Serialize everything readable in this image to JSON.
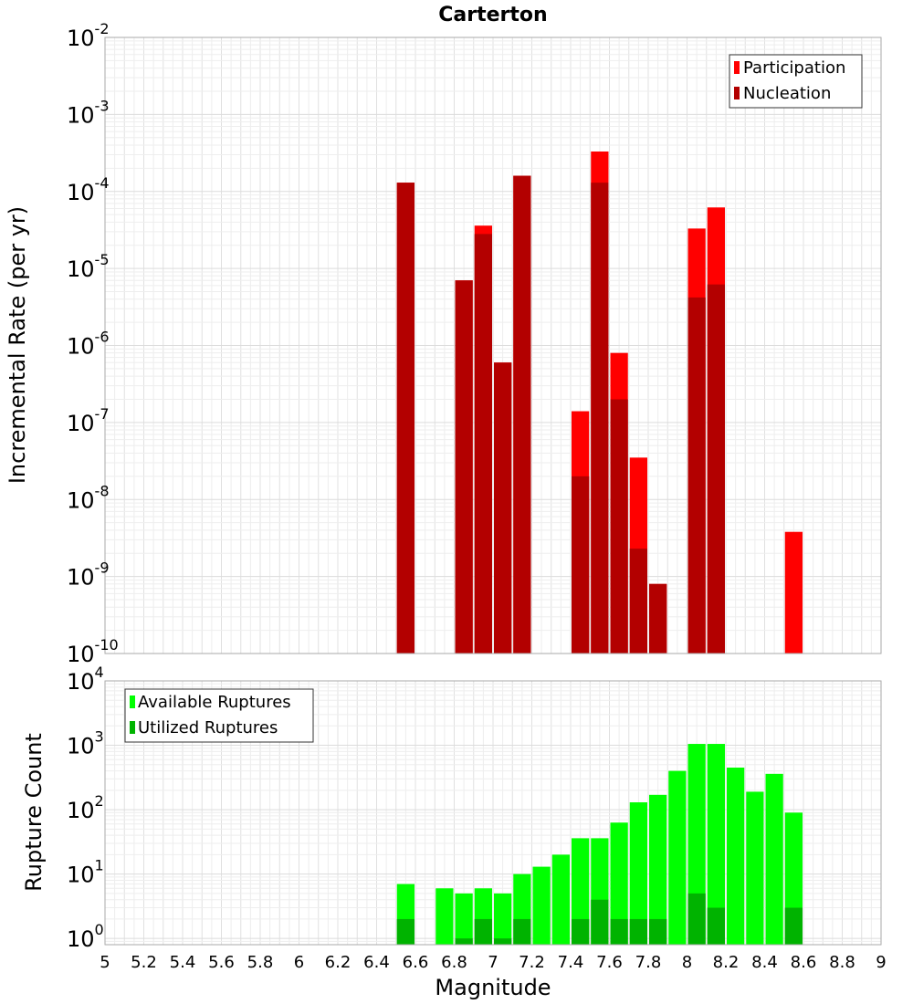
{
  "chart_data": [
    {
      "type": "bar",
      "title": "Carterton",
      "ylabel": "Incremental Rate (per yr)",
      "xlabel": "",
      "y_scale": "log",
      "ylim": [
        1e-10,
        0.01
      ],
      "xlim": [
        5,
        9
      ],
      "bar_width": 0.1,
      "grid": true,
      "legend": "top-right",
      "y_ticks": [
        {
          "value": 1e-10,
          "base": "10",
          "exp": "-10"
        },
        {
          "value": 1e-09,
          "base": "10",
          "exp": "-9"
        },
        {
          "value": 1e-08,
          "base": "10",
          "exp": "-8"
        },
        {
          "value": 1e-07,
          "base": "10",
          "exp": "-7"
        },
        {
          "value": 1e-06,
          "base": "10",
          "exp": "-6"
        },
        {
          "value": 1e-05,
          "base": "10",
          "exp": "-5"
        },
        {
          "value": 0.0001,
          "base": "10",
          "exp": "-4"
        },
        {
          "value": 0.001,
          "base": "10",
          "exp": "-3"
        },
        {
          "value": 0.01,
          "base": "10",
          "exp": "-2"
        }
      ],
      "series": [
        {
          "name": "Participation",
          "color": "#ff0000",
          "points": [
            {
              "x": 6.55,
              "y": 0.00013
            },
            {
              "x": 6.85,
              "y": 7e-06
            },
            {
              "x": 6.95,
              "y": 3.6e-05
            },
            {
              "x": 7.05,
              "y": 6e-07
            },
            {
              "x": 7.15,
              "y": 0.00016
            },
            {
              "x": 7.45,
              "y": 1.4e-07
            },
            {
              "x": 7.55,
              "y": 0.00033
            },
            {
              "x": 7.65,
              "y": 8e-07
            },
            {
              "x": 7.75,
              "y": 3.5e-08
            },
            {
              "x": 7.85,
              "y": 8e-10
            },
            {
              "x": 8.05,
              "y": 3.3e-05
            },
            {
              "x": 8.15,
              "y": 6.2e-05
            },
            {
              "x": 8.55,
              "y": 3.8e-09
            }
          ]
        },
        {
          "name": "Nucleation",
          "color": "#b30000",
          "points": [
            {
              "x": 6.55,
              "y": 0.00013
            },
            {
              "x": 6.85,
              "y": 7e-06
            },
            {
              "x": 6.95,
              "y": 2.8e-05
            },
            {
              "x": 7.05,
              "y": 6e-07
            },
            {
              "x": 7.15,
              "y": 0.00016
            },
            {
              "x": 7.45,
              "y": 2e-08
            },
            {
              "x": 7.55,
              "y": 0.00013
            },
            {
              "x": 7.65,
              "y": 2e-07
            },
            {
              "x": 7.75,
              "y": 2.3e-09
            },
            {
              "x": 7.85,
              "y": 8e-10
            },
            {
              "x": 8.05,
              "y": 4.2e-06
            },
            {
              "x": 8.15,
              "y": 6.2e-06
            }
          ]
        }
      ]
    },
    {
      "type": "bar",
      "title": "",
      "ylabel": "Rupture Count",
      "xlabel": "Magnitude",
      "y_scale": "log",
      "ylim": [
        0.8,
        10000
      ],
      "xlim": [
        5,
        9
      ],
      "bar_width": 0.1,
      "grid": true,
      "legend": "top-left",
      "y_ticks": [
        {
          "value": 1,
          "base": "10",
          "exp": "0"
        },
        {
          "value": 10,
          "base": "10",
          "exp": "1"
        },
        {
          "value": 100,
          "base": "10",
          "exp": "2"
        },
        {
          "value": 1000,
          "base": "10",
          "exp": "3"
        },
        {
          "value": 10000,
          "base": "10",
          "exp": "4"
        }
      ],
      "x_ticks": [
        "5",
        "5.2",
        "5.4",
        "5.6",
        "5.8",
        "6",
        "6.2",
        "6.4",
        "6.6",
        "6.8",
        "7",
        "7.2",
        "7.4",
        "7.6",
        "7.8",
        "8",
        "8.2",
        "8.4",
        "8.6",
        "8.8",
        "9"
      ],
      "series": [
        {
          "name": "Available Ruptures",
          "color": "#00ff00",
          "points": [
            {
              "x": 6.55,
              "y": 7
            },
            {
              "x": 6.75,
              "y": 6
            },
            {
              "x": 6.85,
              "y": 5
            },
            {
              "x": 6.95,
              "y": 6
            },
            {
              "x": 7.05,
              "y": 5
            },
            {
              "x": 7.15,
              "y": 10
            },
            {
              "x": 7.25,
              "y": 13
            },
            {
              "x": 7.35,
              "y": 20
            },
            {
              "x": 7.45,
              "y": 36
            },
            {
              "x": 7.55,
              "y": 36
            },
            {
              "x": 7.65,
              "y": 63
            },
            {
              "x": 7.75,
              "y": 130
            },
            {
              "x": 7.85,
              "y": 170
            },
            {
              "x": 7.95,
              "y": 400
            },
            {
              "x": 8.05,
              "y": 1050
            },
            {
              "x": 8.15,
              "y": 1050
            },
            {
              "x": 8.25,
              "y": 450
            },
            {
              "x": 8.35,
              "y": 190
            },
            {
              "x": 8.45,
              "y": 360
            },
            {
              "x": 8.55,
              "y": 90
            }
          ]
        },
        {
          "name": "Utilized Ruptures",
          "color": "#00b300",
          "points": [
            {
              "x": 6.55,
              "y": 2
            },
            {
              "x": 6.85,
              "y": 1
            },
            {
              "x": 6.95,
              "y": 2
            },
            {
              "x": 7.05,
              "y": 1
            },
            {
              "x": 7.15,
              "y": 2
            },
            {
              "x": 7.45,
              "y": 2
            },
            {
              "x": 7.55,
              "y": 4
            },
            {
              "x": 7.65,
              "y": 2
            },
            {
              "x": 7.75,
              "y": 2
            },
            {
              "x": 7.85,
              "y": 2
            },
            {
              "x": 8.05,
              "y": 5
            },
            {
              "x": 8.15,
              "y": 3
            },
            {
              "x": 8.55,
              "y": 3
            }
          ]
        }
      ]
    }
  ]
}
